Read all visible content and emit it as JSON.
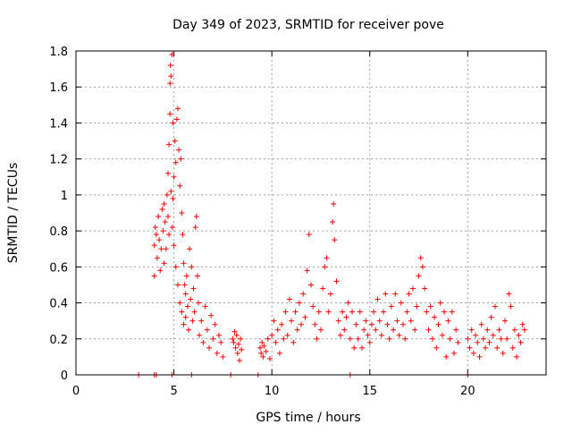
{
  "chart_data": {
    "type": "scatter",
    "title": "Day 349 of 2023, SRMTID for receiver pove",
    "xlabel": "GPS time / hours",
    "ylabel": "SRMTID / TECUs",
    "xlim": [
      0,
      24
    ],
    "ylim": [
      0,
      1.8
    ],
    "xticks": [
      0,
      5,
      10,
      15,
      20
    ],
    "xtick_labels": [
      "0",
      "5",
      "10",
      "15",
      "20"
    ],
    "yticks": [
      0,
      0.2,
      0.4,
      0.6,
      0.8,
      1.0,
      1.2,
      1.4,
      1.6,
      1.8
    ],
    "ytick_labels": [
      "0",
      "0.2",
      "0.4",
      "0.6",
      "0.8",
      "1",
      "1.2",
      "1.4",
      "1.6",
      "1.8"
    ],
    "grid": true,
    "legend": "none",
    "series": [
      {
        "name": "SRMTID",
        "marker": "plus",
        "color": "#ff0000",
        "points": [
          [
            3.2,
            0
          ],
          [
            4.0,
            0
          ],
          [
            4.1,
            0
          ],
          [
            4.9,
            0
          ],
          [
            5.9,
            0
          ],
          [
            7.9,
            0
          ],
          [
            9.3,
            0
          ],
          [
            14.0,
            0
          ],
          [
            20.0,
            0
          ],
          [
            4.0,
            0.55
          ],
          [
            4.0,
            0.72
          ],
          [
            4.05,
            0.82
          ],
          [
            4.1,
            0.78
          ],
          [
            4.15,
            0.65
          ],
          [
            4.2,
            0.88
          ],
          [
            4.25,
            0.75
          ],
          [
            4.3,
            0.58
          ],
          [
            4.35,
            0.7
          ],
          [
            4.4,
            0.92
          ],
          [
            4.45,
            0.8
          ],
          [
            4.5,
            0.62
          ],
          [
            4.5,
            0.95
          ],
          [
            4.55,
            0.85
          ],
          [
            4.6,
            0.7
          ],
          [
            4.65,
            1.0
          ],
          [
            4.7,
            0.88
          ],
          [
            4.7,
            1.12
          ],
          [
            4.75,
            1.28
          ],
          [
            4.75,
            0.78
          ],
          [
            4.8,
            1.45
          ],
          [
            4.8,
            1.62
          ],
          [
            4.82,
            1.72
          ],
          [
            4.85,
            1.66
          ],
          [
            4.85,
            1.02
          ],
          [
            4.9,
            1.78
          ],
          [
            4.92,
            0.82
          ],
          [
            4.95,
            1.4
          ],
          [
            4.95,
            0.98
          ],
          [
            5.0,
            1.1
          ],
          [
            5.0,
            0.72
          ],
          [
            5.05,
            1.3
          ],
          [
            5.1,
            1.18
          ],
          [
            5.1,
            0.6
          ],
          [
            5.15,
            1.42
          ],
          [
            5.2,
            1.48
          ],
          [
            5.2,
            0.5
          ],
          [
            5.25,
            1.25
          ],
          [
            5.3,
            1.05
          ],
          [
            5.3,
            0.4
          ],
          [
            5.35,
            1.2
          ],
          [
            5.4,
            0.9
          ],
          [
            5.4,
            0.35
          ],
          [
            5.45,
            0.78
          ],
          [
            5.5,
            0.62
          ],
          [
            5.5,
            0.28
          ],
          [
            5.55,
            0.5
          ],
          [
            5.6,
            0.45
          ],
          [
            5.6,
            0.32
          ],
          [
            5.65,
            0.55
          ],
          [
            5.7,
            0.38
          ],
          [
            5.75,
            0.25
          ],
          [
            5.8,
            0.7
          ],
          [
            5.85,
            0.42
          ],
          [
            5.9,
            0.6
          ],
          [
            5.95,
            0.3
          ],
          [
            6.0,
            0.48
          ],
          [
            6.05,
            0.35
          ],
          [
            6.1,
            0.82
          ],
          [
            6.15,
            0.88
          ],
          [
            6.2,
            0.55
          ],
          [
            6.25,
            0.4
          ],
          [
            6.3,
            0.22
          ],
          [
            6.4,
            0.3
          ],
          [
            6.5,
            0.18
          ],
          [
            6.6,
            0.38
          ],
          [
            6.7,
            0.25
          ],
          [
            6.8,
            0.15
          ],
          [
            6.9,
            0.33
          ],
          [
            7.0,
            0.2
          ],
          [
            7.1,
            0.28
          ],
          [
            7.2,
            0.12
          ],
          [
            7.3,
            0.22
          ],
          [
            7.4,
            0.18
          ],
          [
            7.5,
            0.1
          ],
          [
            8.0,
            0.2
          ],
          [
            8.05,
            0.18
          ],
          [
            8.1,
            0.24
          ],
          [
            8.15,
            0.15
          ],
          [
            8.2,
            0.22
          ],
          [
            8.25,
            0.12
          ],
          [
            8.3,
            0.17
          ],
          [
            8.35,
            0.08
          ],
          [
            8.4,
            0.2
          ],
          [
            8.45,
            0.14
          ],
          [
            9.4,
            0.15
          ],
          [
            9.45,
            0.12
          ],
          [
            9.5,
            0.18
          ],
          [
            9.55,
            0.1
          ],
          [
            9.6,
            0.16
          ],
          [
            9.7,
            0.13
          ],
          [
            9.8,
            0.2
          ],
          [
            9.9,
            0.09
          ],
          [
            10.0,
            0.22
          ],
          [
            10.1,
            0.3
          ],
          [
            10.2,
            0.18
          ],
          [
            10.3,
            0.25
          ],
          [
            10.4,
            0.12
          ],
          [
            10.5,
            0.28
          ],
          [
            10.6,
            0.2
          ],
          [
            10.7,
            0.35
          ],
          [
            10.8,
            0.22
          ],
          [
            10.9,
            0.42
          ],
          [
            11.0,
            0.3
          ],
          [
            11.1,
            0.18
          ],
          [
            11.2,
            0.35
          ],
          [
            11.3,
            0.25
          ],
          [
            11.4,
            0.4
          ],
          [
            11.5,
            0.28
          ],
          [
            11.6,
            0.45
          ],
          [
            11.7,
            0.32
          ],
          [
            11.8,
            0.58
          ],
          [
            11.9,
            0.78
          ],
          [
            12.0,
            0.5
          ],
          [
            12.1,
            0.38
          ],
          [
            12.2,
            0.28
          ],
          [
            12.3,
            0.2
          ],
          [
            12.4,
            0.35
          ],
          [
            12.5,
            0.25
          ],
          [
            12.6,
            0.48
          ],
          [
            12.7,
            0.6
          ],
          [
            12.8,
            0.65
          ],
          [
            12.9,
            0.35
          ],
          [
            13.0,
            0.45
          ],
          [
            13.1,
            0.85
          ],
          [
            13.15,
            0.95
          ],
          [
            13.2,
            0.75
          ],
          [
            13.3,
            0.52
          ],
          [
            13.4,
            0.3
          ],
          [
            13.5,
            0.22
          ],
          [
            13.6,
            0.35
          ],
          [
            13.7,
            0.25
          ],
          [
            13.8,
            0.32
          ],
          [
            13.9,
            0.4
          ],
          [
            14.0,
            0.2
          ],
          [
            14.1,
            0.35
          ],
          [
            14.2,
            0.15
          ],
          [
            14.3,
            0.28
          ],
          [
            14.4,
            0.2
          ],
          [
            14.5,
            0.35
          ],
          [
            14.6,
            0.15
          ],
          [
            14.7,
            0.25
          ],
          [
            14.8,
            0.3
          ],
          [
            14.9,
            0.22
          ],
          [
            15.0,
            0.18
          ],
          [
            15.1,
            0.28
          ],
          [
            15.2,
            0.35
          ],
          [
            15.3,
            0.25
          ],
          [
            15.4,
            0.42
          ],
          [
            15.5,
            0.3
          ],
          [
            15.6,
            0.22
          ],
          [
            15.7,
            0.35
          ],
          [
            15.8,
            0.45
          ],
          [
            15.9,
            0.28
          ],
          [
            16.0,
            0.2
          ],
          [
            16.1,
            0.38
          ],
          [
            16.2,
            0.25
          ],
          [
            16.3,
            0.45
          ],
          [
            16.4,
            0.3
          ],
          [
            16.5,
            0.22
          ],
          [
            16.6,
            0.4
          ],
          [
            16.7,
            0.28
          ],
          [
            16.8,
            0.2
          ],
          [
            16.9,
            0.35
          ],
          [
            17.0,
            0.45
          ],
          [
            17.1,
            0.3
          ],
          [
            17.2,
            0.48
          ],
          [
            17.3,
            0.25
          ],
          [
            17.4,
            0.38
          ],
          [
            17.5,
            0.55
          ],
          [
            17.6,
            0.65
          ],
          [
            17.7,
            0.6
          ],
          [
            17.8,
            0.48
          ],
          [
            17.9,
            0.35
          ],
          [
            18.0,
            0.25
          ],
          [
            18.1,
            0.38
          ],
          [
            18.2,
            0.2
          ],
          [
            18.3,
            0.32
          ],
          [
            18.4,
            0.15
          ],
          [
            18.5,
            0.28
          ],
          [
            18.6,
            0.4
          ],
          [
            18.7,
            0.22
          ],
          [
            18.8,
            0.35
          ],
          [
            18.9,
            0.1
          ],
          [
            19.0,
            0.3
          ],
          [
            19.1,
            0.2
          ],
          [
            19.2,
            0.35
          ],
          [
            19.3,
            0.12
          ],
          [
            19.4,
            0.25
          ],
          [
            19.5,
            0.18
          ],
          [
            20.0,
            0.2
          ],
          [
            20.1,
            0.15
          ],
          [
            20.2,
            0.25
          ],
          [
            20.3,
            0.12
          ],
          [
            20.4,
            0.22
          ],
          [
            20.5,
            0.18
          ],
          [
            20.6,
            0.1
          ],
          [
            20.7,
            0.28
          ],
          [
            20.8,
            0.2
          ],
          [
            20.9,
            0.15
          ],
          [
            21.0,
            0.25
          ],
          [
            21.1,
            0.18
          ],
          [
            21.2,
            0.32
          ],
          [
            21.3,
            0.22
          ],
          [
            21.4,
            0.38
          ],
          [
            21.5,
            0.15
          ],
          [
            21.6,
            0.25
          ],
          [
            21.7,
            0.2
          ],
          [
            21.8,
            0.12
          ],
          [
            21.9,
            0.3
          ],
          [
            22.0,
            0.2
          ],
          [
            22.1,
            0.45
          ],
          [
            22.2,
            0.38
          ],
          [
            22.3,
            0.15
          ],
          [
            22.4,
            0.25
          ],
          [
            22.5,
            0.1
          ],
          [
            22.6,
            0.22
          ],
          [
            22.7,
            0.18
          ],
          [
            22.8,
            0.28
          ],
          [
            22.9,
            0.25
          ]
        ]
      }
    ]
  }
}
